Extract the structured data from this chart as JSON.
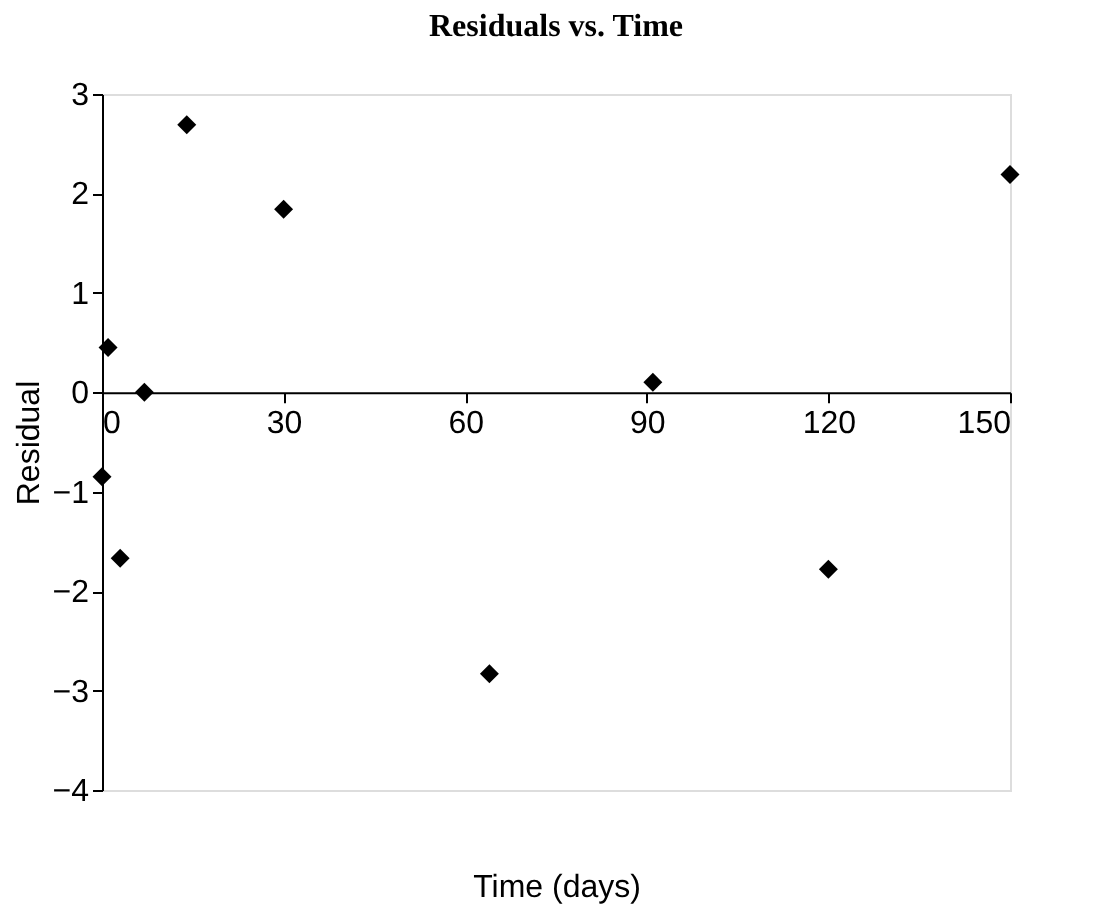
{
  "chart_data": {
    "type": "scatter",
    "title": "Residuals vs. Time",
    "xlabel": "Time (days)",
    "ylabel": "Residual",
    "x": [
      0,
      1,
      3,
      7,
      14,
      30,
      64,
      91,
      120,
      150
    ],
    "series": [
      {
        "color": "#000000",
        "values": [
          -0.85,
          0.45,
          -1.67,
          0.0,
          2.69,
          1.84,
          -2.83,
          0.1,
          -1.78,
          2.19
        ]
      }
    ],
    "xlim": [
      0,
      150
    ],
    "xticks": [
      0,
      30,
      60,
      90,
      120,
      150
    ],
    "ylim": [
      -4,
      3
    ],
    "yticks": [
      -4,
      -3,
      -2,
      -1,
      0,
      1,
      2,
      3
    ],
    "grid": false,
    "marker": "diamond"
  }
}
